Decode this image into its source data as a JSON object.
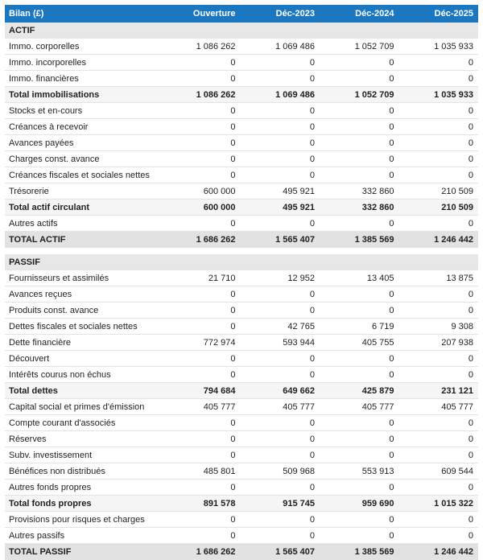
{
  "colors": {
    "header_bg": "#1b78c0",
    "header_text": "#ffffff",
    "section_bg": "#e7e7e7",
    "subtotal_bg": "#f5f5f5",
    "grandtotal_bg": "#e2e2e2",
    "row_border": "#e4e4e4",
    "text": "#1f1f1f"
  },
  "table": {
    "columns": [
      "Bilan (£)",
      "Ouverture",
      "Déc-2023",
      "Déc-2024",
      "Déc-2025"
    ],
    "rows": [
      {
        "type": "section",
        "label": "ACTIF",
        "values": [
          "",
          "",
          "",
          ""
        ]
      },
      {
        "type": "data",
        "label": "Immo. corporelles",
        "values": [
          "1 086 262",
          "1 069 486",
          "1 052 709",
          "1 035 933"
        ]
      },
      {
        "type": "data",
        "label": "Immo. incorporelles",
        "values": [
          "0",
          "0",
          "0",
          "0"
        ]
      },
      {
        "type": "data",
        "label": "Immo. financières",
        "values": [
          "0",
          "0",
          "0",
          "0"
        ]
      },
      {
        "type": "subtotal",
        "label": "Total immobilisations",
        "values": [
          "1 086 262",
          "1 069 486",
          "1 052 709",
          "1 035 933"
        ]
      },
      {
        "type": "data",
        "label": "Stocks et en-cours",
        "values": [
          "0",
          "0",
          "0",
          "0"
        ]
      },
      {
        "type": "data",
        "label": "Créances à recevoir",
        "values": [
          "0",
          "0",
          "0",
          "0"
        ]
      },
      {
        "type": "data",
        "label": "Avances payées",
        "values": [
          "0",
          "0",
          "0",
          "0"
        ]
      },
      {
        "type": "data",
        "label": "Charges const. avance",
        "values": [
          "0",
          "0",
          "0",
          "0"
        ]
      },
      {
        "type": "data",
        "label": "Créances fiscales et sociales nettes",
        "values": [
          "0",
          "0",
          "0",
          "0"
        ]
      },
      {
        "type": "data",
        "label": "Trésorerie",
        "values": [
          "600 000",
          "495 921",
          "332 860",
          "210 509"
        ]
      },
      {
        "type": "subtotal",
        "label": "Total actif circulant",
        "values": [
          "600 000",
          "495 921",
          "332 860",
          "210 509"
        ]
      },
      {
        "type": "data",
        "label": "Autres actifs",
        "values": [
          "0",
          "0",
          "0",
          "0"
        ]
      },
      {
        "type": "grandtotal",
        "label": "TOTAL ACTIF",
        "values": [
          "1 686 262",
          "1 565 407",
          "1 385 569",
          "1 246 442"
        ]
      },
      {
        "type": "spacer",
        "label": "",
        "values": [
          "",
          "",
          "",
          ""
        ]
      },
      {
        "type": "section",
        "label": "PASSIF",
        "values": [
          "",
          "",
          "",
          ""
        ]
      },
      {
        "type": "data",
        "label": "Fournisseurs et assimilés",
        "values": [
          "21 710",
          "12 952",
          "13 405",
          "13 875"
        ]
      },
      {
        "type": "data",
        "label": "Avances reçues",
        "values": [
          "0",
          "0",
          "0",
          "0"
        ]
      },
      {
        "type": "data",
        "label": "Produits const. avance",
        "values": [
          "0",
          "0",
          "0",
          "0"
        ]
      },
      {
        "type": "data",
        "label": "Dettes fiscales et sociales nettes",
        "values": [
          "0",
          "42 765",
          "6 719",
          "9 308"
        ]
      },
      {
        "type": "data",
        "label": "Dette financière",
        "values": [
          "772 974",
          "593 944",
          "405 755",
          "207 938"
        ]
      },
      {
        "type": "data",
        "label": "Découvert",
        "values": [
          "0",
          "0",
          "0",
          "0"
        ]
      },
      {
        "type": "data",
        "label": "Intérêts courus non échus",
        "values": [
          "0",
          "0",
          "0",
          "0"
        ]
      },
      {
        "type": "subtotal",
        "label": "Total dettes",
        "values": [
          "794 684",
          "649 662",
          "425 879",
          "231 121"
        ]
      },
      {
        "type": "data",
        "label": "Capital social et primes d'émission",
        "values": [
          "405 777",
          "405 777",
          "405 777",
          "405 777"
        ]
      },
      {
        "type": "data",
        "label": "Compte courant d'associés",
        "values": [
          "0",
          "0",
          "0",
          "0"
        ]
      },
      {
        "type": "data",
        "label": "Réserves",
        "values": [
          "0",
          "0",
          "0",
          "0"
        ]
      },
      {
        "type": "data",
        "label": "Subv. investissement",
        "values": [
          "0",
          "0",
          "0",
          "0"
        ]
      },
      {
        "type": "data",
        "label": "Bénéfices non distribués",
        "values": [
          "485 801",
          "509 968",
          "553 913",
          "609 544"
        ]
      },
      {
        "type": "data",
        "label": "Autres fonds propres",
        "values": [
          "0",
          "0",
          "0",
          "0"
        ]
      },
      {
        "type": "subtotal",
        "label": "Total fonds propres",
        "values": [
          "891 578",
          "915 745",
          "959 690",
          "1 015 322"
        ]
      },
      {
        "type": "data",
        "label": "Provisions pour risques et charges",
        "values": [
          "0",
          "0",
          "0",
          "0"
        ]
      },
      {
        "type": "data",
        "label": "Autres passifs",
        "values": [
          "0",
          "0",
          "0",
          "0"
        ]
      },
      {
        "type": "grandtotal",
        "label": "TOTAL PASSIF",
        "values": [
          "1 686 262",
          "1 565 407",
          "1 385 569",
          "1 246 442"
        ]
      }
    ]
  }
}
